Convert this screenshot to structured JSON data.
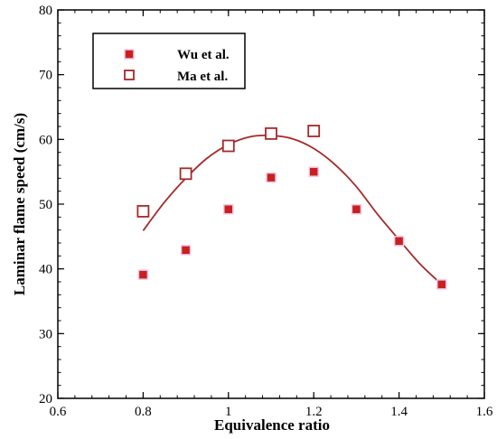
{
  "chart_data": {
    "type": "scatter",
    "xlabel": "Equivalence ratio",
    "ylabel": "Laminar flame speed (cm/s)",
    "xlim": [
      0.6,
      1.6
    ],
    "ylim": [
      20,
      80
    ],
    "x_ticks": [
      0.6,
      0.8,
      1.0,
      1.2,
      1.4,
      1.6
    ],
    "x_tick_labels": [
      "0.6",
      "0.8",
      "1",
      "1.2",
      "1.4",
      "1.6"
    ],
    "y_ticks": [
      20,
      30,
      40,
      50,
      60,
      70,
      80
    ],
    "y_tick_labels": [
      "20",
      "30",
      "40",
      "50",
      "60",
      "70",
      "80"
    ],
    "grid": false,
    "legend_position": "top-left",
    "series": [
      {
        "name": "Wu et al.",
        "marker": "filled-square",
        "color": "#c8201e",
        "x": [
          0.8,
          0.9,
          1.0,
          1.1,
          1.2,
          1.3,
          1.4,
          1.5
        ],
        "y": [
          39.1,
          42.9,
          49.2,
          54.1,
          55.0,
          49.2,
          44.3,
          37.6
        ]
      },
      {
        "name": "Ma et al.",
        "marker": "open-square",
        "color": "#a52a2a",
        "x": [
          0.8,
          0.9,
          1.0,
          1.1,
          1.2
        ],
        "y": [
          48.9,
          54.7,
          59.0,
          60.9,
          61.3
        ]
      }
    ],
    "fit_curve": {
      "color": "#a52a2a",
      "x": [
        0.8,
        0.85,
        0.9,
        0.95,
        1.0,
        1.05,
        1.1,
        1.15,
        1.2,
        1.25,
        1.3,
        1.35,
        1.4,
        1.45,
        1.5
      ],
      "y": [
        45.9,
        50.3,
        54.0,
        57.1,
        59.2,
        60.4,
        60.6,
        60.1,
        58.6,
        56.1,
        52.7,
        48.4,
        44.5,
        40.7,
        37.6
      ]
    }
  }
}
